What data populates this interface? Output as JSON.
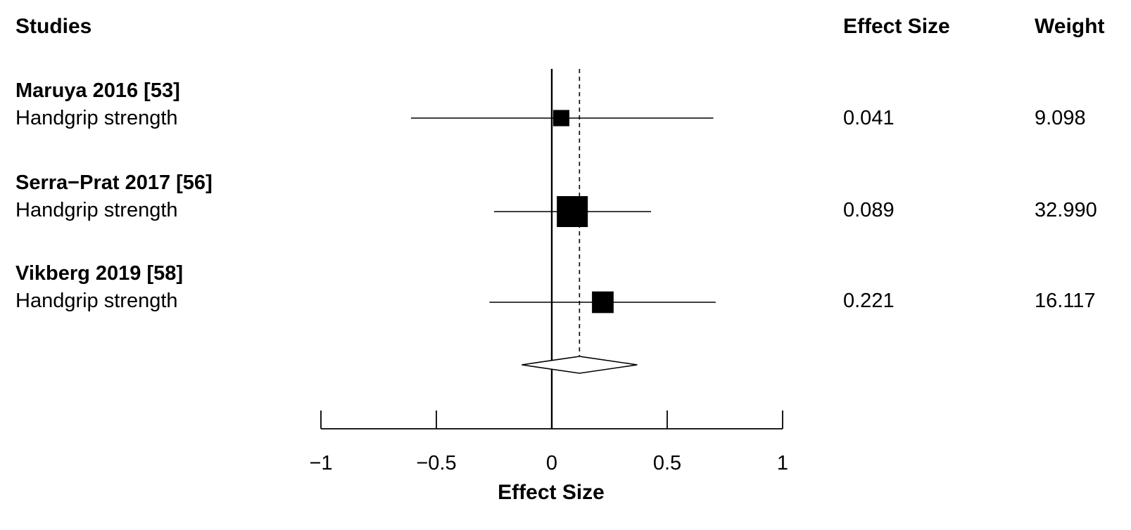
{
  "headers": {
    "studies": "Studies",
    "effect_size": "Effect Size",
    "weight": "Weight"
  },
  "chart_data": {
    "type": "forest",
    "xlabel": "Effect Size",
    "xlim": [
      -1,
      1
    ],
    "ticks": [
      {
        "value": -1,
        "label": "−1"
      },
      {
        "value": -0.5,
        "label": "−0.5"
      },
      {
        "value": 0,
        "label": "0"
      },
      {
        "value": 0.5,
        "label": "0.5"
      },
      {
        "value": 1,
        "label": "1"
      }
    ],
    "null_line": 0,
    "pooled_line": 0.12,
    "studies": [
      {
        "name": "Maruya 2016 [53]",
        "outcome": "Handgrip strength",
        "effect": 0.041,
        "effect_label": "0.041",
        "ci_low": -0.61,
        "ci_high": 0.7,
        "weight": 9.098,
        "weight_label": "9.098"
      },
      {
        "name": "Serra−Prat 2017 [56]",
        "outcome": "Handgrip strength",
        "effect": 0.089,
        "effect_label": "0.089",
        "ci_low": -0.25,
        "ci_high": 0.43,
        "weight": 32.99,
        "weight_label": "32.990"
      },
      {
        "name": "Vikberg 2019 [58]",
        "outcome": "Handgrip strength",
        "effect": 0.221,
        "effect_label": "0.221",
        "ci_low": -0.27,
        "ci_high": 0.71,
        "weight": 16.117,
        "weight_label": "16.117"
      }
    ],
    "pooled": {
      "estimate": 0.12,
      "ci_low": -0.13,
      "ci_high": 0.37
    },
    "grid": false,
    "legend": "none"
  }
}
